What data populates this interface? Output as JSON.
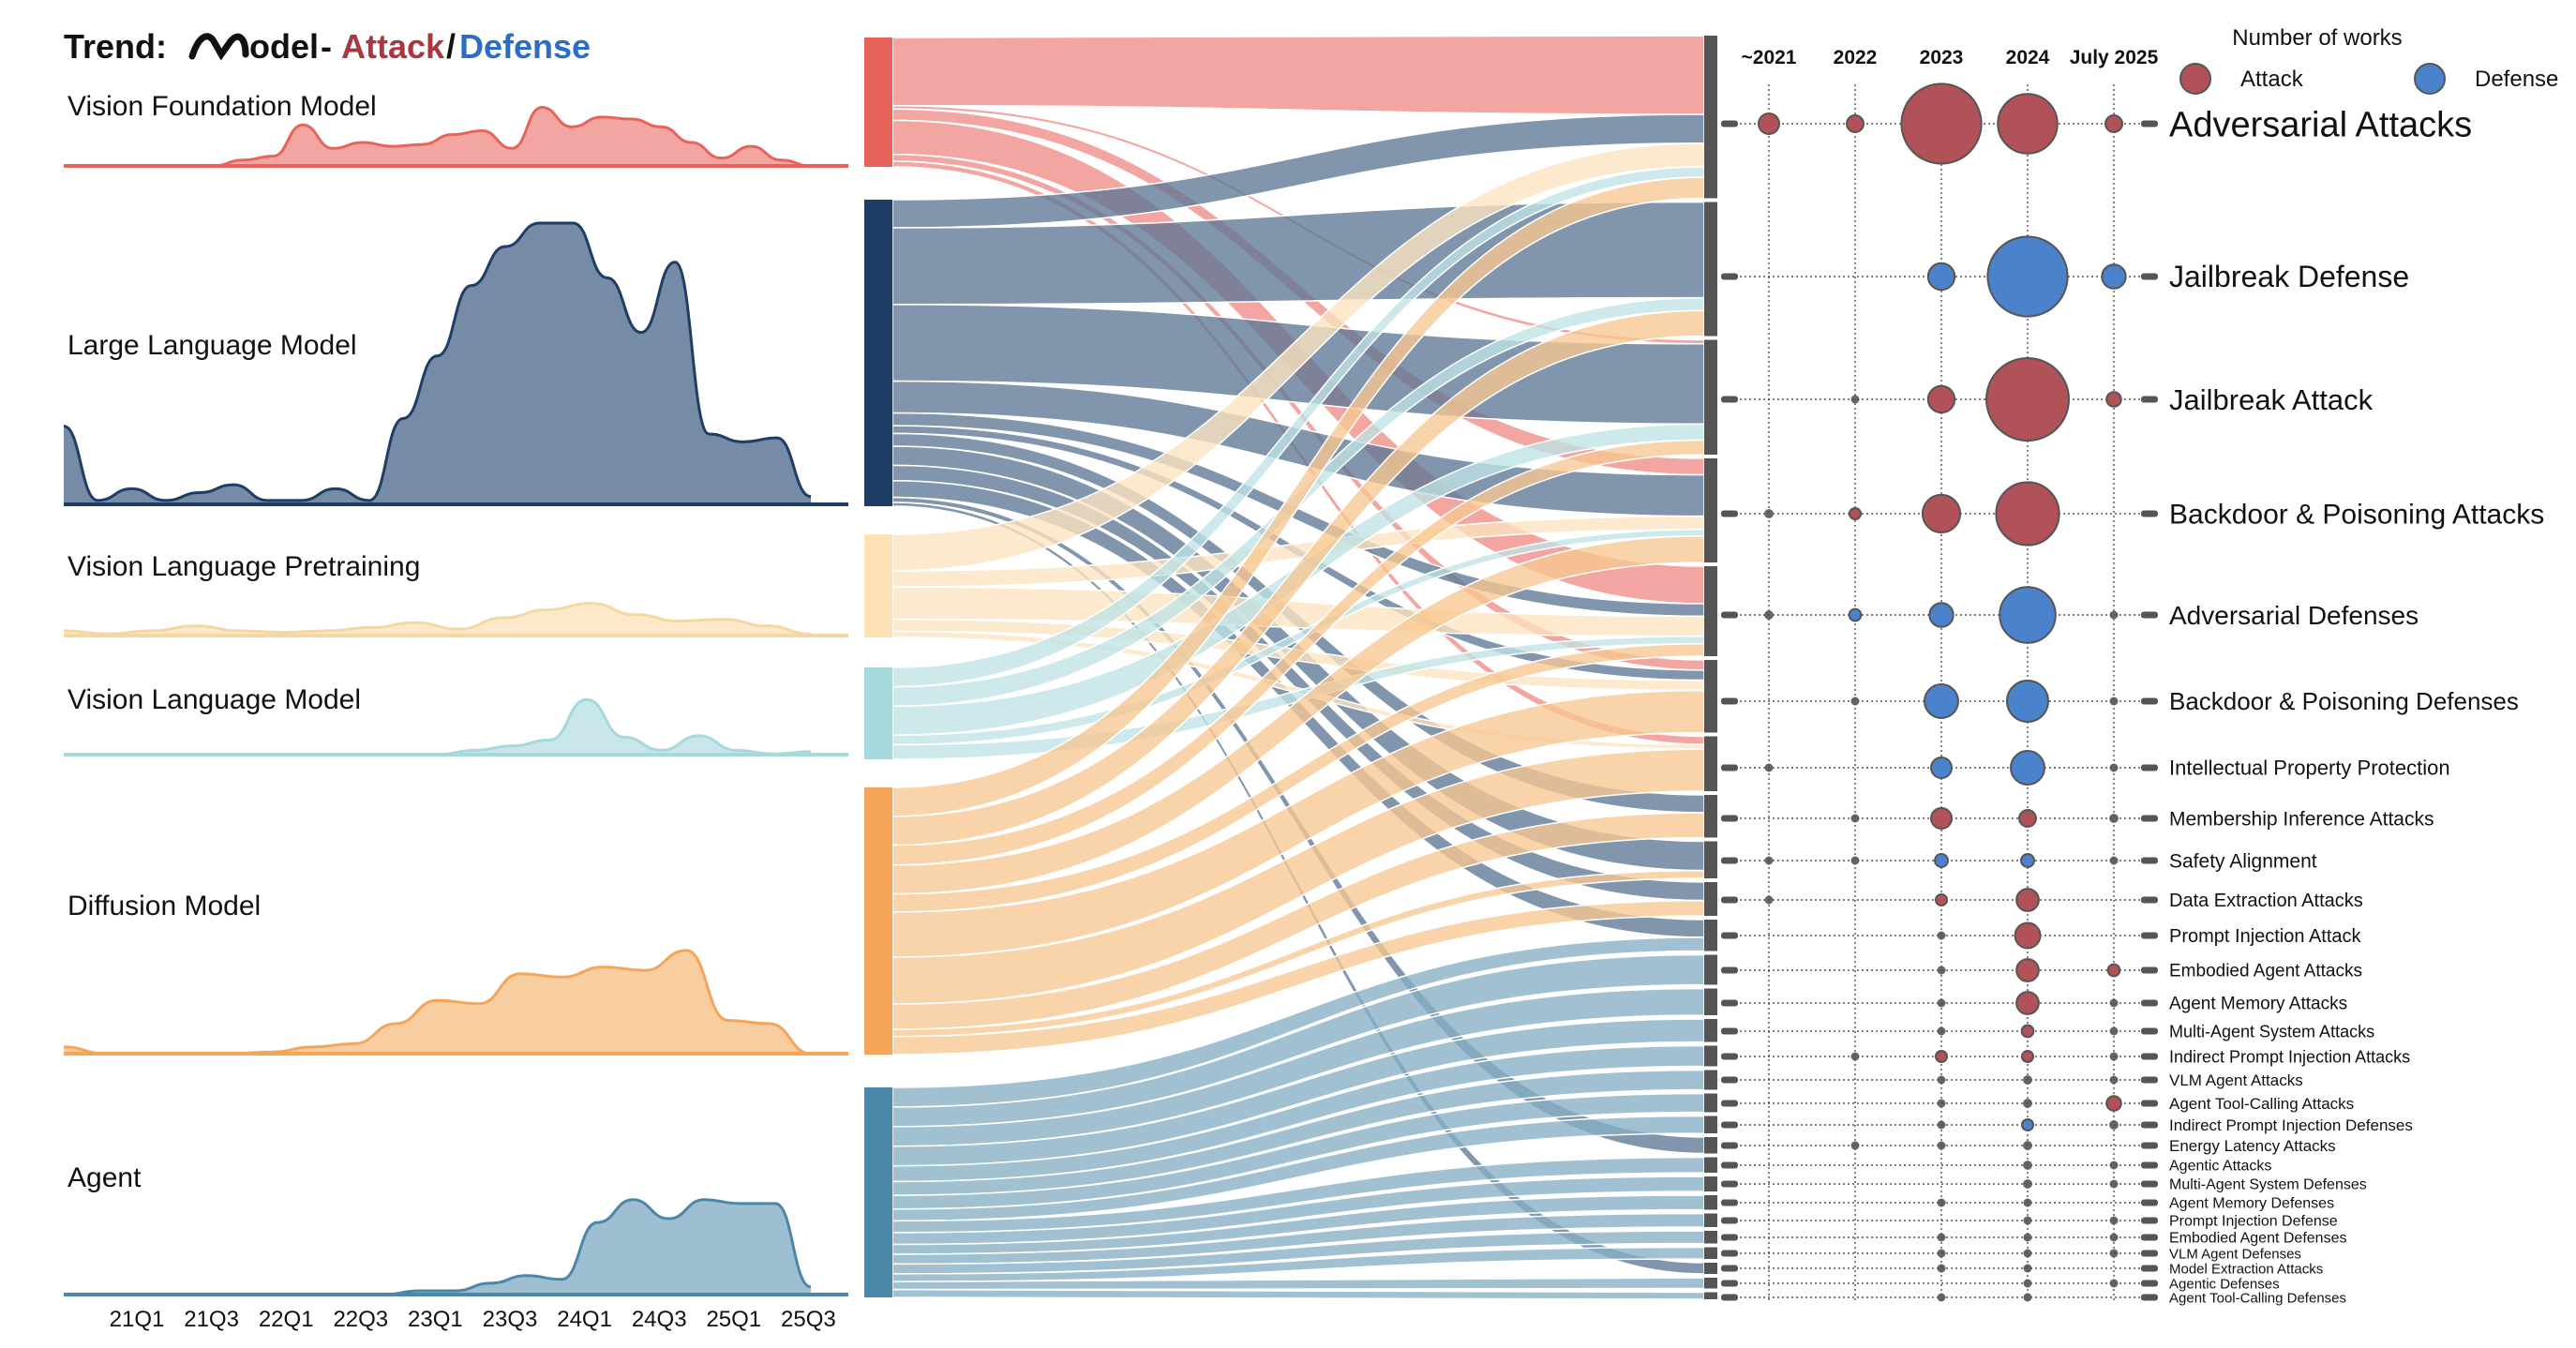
{
  "title": {
    "prefix": "Trend:",
    "model_logo": "Model",
    "dash": "-",
    "attack": "Attack",
    "slash": "/",
    "defense": "Defense"
  },
  "colors": {
    "attack": "#a8373f",
    "defense": "#2b6cc4",
    "attack_bubble": "#b05258",
    "defense_bubble": "#4a83cc",
    "title_attack": "#a8373f",
    "title_defense": "#2b6cc4",
    "axis_bar": "#555555"
  },
  "legend": {
    "title": "Number of works",
    "attack_label": "Attack",
    "defense_label": "Defense"
  },
  "chart_data": [
    {
      "type": "area",
      "subtype": "ridgeline",
      "x_tick_labels": [
        "21Q1",
        "21Q3",
        "22Q1",
        "22Q3",
        "23Q1",
        "23Q3",
        "24Q1",
        "24Q3",
        "25Q1",
        "25Q3"
      ],
      "series": [
        {
          "name": "Vision Foundation Model",
          "color": "#e8645a",
          "fill": "#f09590",
          "values": [
            0,
            0,
            0,
            0,
            0,
            0,
            0.3,
            0.5,
            2.1,
            0.9,
            1.2,
            1.0,
            1.1,
            1.6,
            1.8,
            0.9,
            3.0,
            2.0,
            2.5,
            2.4,
            2.0,
            1.2,
            0.4,
            1.0,
            0.3,
            0
          ],
          "peak": 0.7
        },
        {
          "name": "Large Language Model",
          "color": "#1f3e66",
          "fill": "#5e7796",
          "values": [
            1.0,
            0.05,
            0.2,
            0.05,
            0.15,
            0.25,
            0.05,
            0.05,
            0.2,
            0.05,
            1.1,
            1.9,
            2.8,
            3.3,
            3.6,
            3.6,
            2.9,
            2.2,
            3.1,
            0.9,
            0.8,
            0.85,
            0.1
          ],
          "peak": 0.84
        },
        {
          "name": "Vision Language Pretraining",
          "color": "#f5d7a3",
          "fill": "#fde4c0",
          "values": [
            0.3,
            0.1,
            0.3,
            0.6,
            0.3,
            0.2,
            0.3,
            0.5,
            0.8,
            0.4,
            1.1,
            1.6,
            2.0,
            1.3,
            0.9,
            1.0,
            0.6,
            0.1
          ],
          "peak": 0.34
        },
        {
          "name": "Vision Language Model",
          "color": "#a5d9dc",
          "fill": "#bfe3e6",
          "values": [
            0,
            0,
            0,
            0,
            0,
            0,
            0,
            0,
            0,
            0,
            0,
            0.3,
            0.6,
            1.0,
            3.8,
            1.2,
            0.3,
            1.3,
            0.3,
            0.05,
            0.2
          ],
          "peak": 0.52
        },
        {
          "name": "Diffusion Model",
          "color": "#f4a55a",
          "fill": "#f7c691",
          "values": [
            0.2,
            0,
            0,
            0,
            0,
            0.05,
            0.2,
            0.3,
            0.9,
            1.6,
            1.5,
            2.4,
            2.3,
            2.6,
            2.5,
            3.1,
            1.0,
            0.9,
            0
          ],
          "peak": 0.5
        },
        {
          "name": "Agent",
          "color": "#4a87a8",
          "fill": "#8db4c9",
          "values": [
            0,
            0,
            0,
            0,
            0,
            0,
            0,
            0,
            0,
            0,
            0.1,
            0.1,
            0.3,
            0.5,
            0.4,
            1.9,
            2.5,
            2.0,
            2.5,
            2.4,
            2.4,
            0.2
          ],
          "peak": 0.5
        }
      ]
    },
    {
      "type": "sankey",
      "sources": [
        "Vision Foundation Model",
        "Large Language Model",
        "Vision Language Pretraining",
        "Vision Language Model",
        "Diffusion Model",
        "Agent"
      ],
      "source_share": [
        0.11,
        0.27,
        0.085,
        0.075,
        0.235,
        0.185
      ],
      "targets": [
        "Adversarial Attacks",
        "Jailbreak Defense",
        "Jailbreak Attack",
        "Backdoor & Poisoning Attacks",
        "Adversarial Defenses",
        "Backdoor & Poisoning Defenses",
        "Intellectual Property Protection",
        "Membership Inference Attacks",
        "Safety Alignment",
        "Data Extraction Attacks",
        "Prompt Injection Attack",
        "Embodied Agent Attacks",
        "Agent Memory Attacks",
        "Multi-Agent System Attacks",
        "Indirect Prompt Injection Attacks",
        "VLM Agent Attacks",
        "Agent Tool-Calling Attacks",
        "Indirect Prompt Injection Defenses",
        "Energy Latency Attacks",
        "Agentic Attacks",
        "Multi-Agent System Defenses",
        "Agent Memory Defenses",
        "Prompt Injection Defense",
        "Embodied Agent Defenses",
        "VLM Agent Defenses",
        "Model Extraction Attacks",
        "Agentic Defenses",
        "Agent Tool-Calling Defenses"
      ]
    },
    {
      "type": "scatter",
      "subtype": "bubble",
      "x_categories": [
        "~2021",
        "2022",
        "2023",
        "2024",
        "July 2025"
      ],
      "rows": [
        {
          "label": "Adversarial Attacks",
          "kind": "attack",
          "values": [
            3,
            2,
            45,
            25,
            2
          ]
        },
        {
          "label": "Jailbreak Defense",
          "kind": "defense",
          "values": [
            0,
            0,
            5,
            45,
            4
          ]
        },
        {
          "label": "Jailbreak Attack",
          "kind": "attack",
          "values": [
            0,
            0.3,
            5,
            48,
            1.5
          ]
        },
        {
          "label": "Backdoor & Poisoning Attacks",
          "kind": "attack",
          "values": [
            0.6,
            0.9,
            10,
            28,
            0
          ]
        },
        {
          "label": "Adversarial Defenses",
          "kind": "defense",
          "values": [
            0.6,
            1,
            4,
            22,
            0.3
          ]
        },
        {
          "label": "Backdoor & Poisoning Defenses",
          "kind": "defense",
          "values": [
            0,
            0.3,
            8,
            12,
            0.3
          ]
        },
        {
          "label": "Intellectual Property Protection",
          "kind": "defense",
          "values": [
            0.4,
            0,
            3,
            8,
            0.3
          ]
        },
        {
          "label": "Membership Inference Attacks",
          "kind": "attack",
          "values": [
            0,
            0.3,
            3,
            2,
            0.6
          ]
        },
        {
          "label": "Safety Alignment",
          "kind": "defense",
          "values": [
            0.3,
            0.3,
            1.2,
            1.2,
            0.3
          ]
        },
        {
          "label": "Data Extraction Attacks",
          "kind": "attack",
          "values": [
            0.3,
            0,
            0.9,
            3.5,
            0
          ]
        },
        {
          "label": "Prompt Injection Attack",
          "kind": "attack",
          "values": [
            0,
            0,
            0.4,
            4.5,
            0
          ]
        },
        {
          "label": "Embodied Agent Attacks",
          "kind": "attack",
          "values": [
            0,
            0,
            0.4,
            3.5,
            1
          ]
        },
        {
          "label": "Agent Memory Attacks",
          "kind": "attack",
          "values": [
            0,
            0,
            0.4,
            3.5,
            0.3
          ]
        },
        {
          "label": "Multi-Agent System Attacks",
          "kind": "attack",
          "values": [
            0,
            0,
            0.4,
            1,
            0.4
          ]
        },
        {
          "label": "Indirect Prompt Injection Attacks",
          "kind": "attack",
          "values": [
            0,
            0.3,
            0.9,
            0.9,
            0.3
          ]
        },
        {
          "label": "VLM Agent Attacks",
          "kind": "attack",
          "values": [
            0,
            0,
            0.4,
            0.6,
            0.3
          ]
        },
        {
          "label": "Agent Tool-Calling Attacks",
          "kind": "attack",
          "values": [
            0,
            0,
            0.4,
            0.6,
            1.5
          ]
        },
        {
          "label": "Indirect Prompt Injection Defenses",
          "kind": "defense",
          "values": [
            0,
            0,
            0.4,
            0.9,
            0.6
          ]
        },
        {
          "label": "Energy Latency Attacks",
          "kind": "attack",
          "values": [
            0,
            0.3,
            0.4,
            0.6,
            0
          ]
        },
        {
          "label": "Agentic Attacks",
          "kind": "attack",
          "values": [
            0,
            0,
            0,
            0.6,
            0.3
          ]
        },
        {
          "label": "Multi-Agent System Defenses",
          "kind": "defense",
          "values": [
            0,
            0,
            0,
            0.6,
            0.3
          ]
        },
        {
          "label": "Agent Memory Defenses",
          "kind": "defense",
          "values": [
            0,
            0,
            0.3,
            0.4,
            0
          ]
        },
        {
          "label": "Prompt Injection Defense",
          "kind": "defense",
          "values": [
            0,
            0,
            0,
            0.4,
            0.3
          ]
        },
        {
          "label": "Embodied Agent Defenses",
          "kind": "defense",
          "values": [
            0,
            0,
            0.3,
            0.4,
            0.3
          ]
        },
        {
          "label": "VLM Agent Defenses",
          "kind": "defense",
          "values": [
            0,
            0,
            0.3,
            0.4,
            0.3
          ]
        },
        {
          "label": "Model Extraction Attacks",
          "kind": "attack",
          "values": [
            0,
            0,
            0.3,
            0.4,
            0
          ]
        },
        {
          "label": "Agentic Defenses",
          "kind": "defense",
          "values": [
            0,
            0,
            0,
            0.4,
            0.3
          ]
        },
        {
          "label": "Agent Tool-Calling Defenses",
          "kind": "defense",
          "values": [
            0,
            0,
            0.3,
            0.4,
            0
          ]
        }
      ]
    }
  ]
}
